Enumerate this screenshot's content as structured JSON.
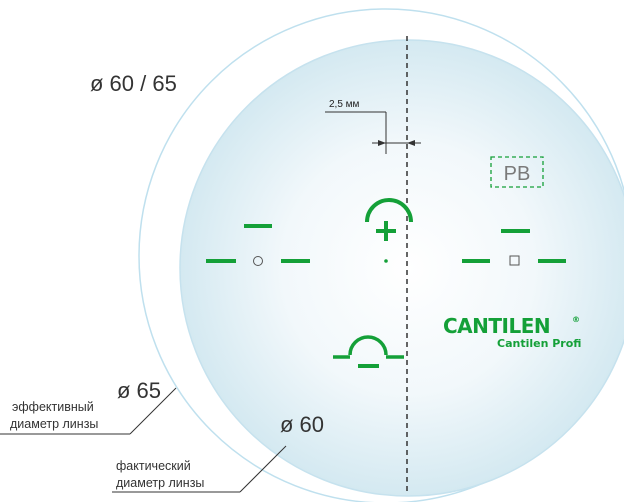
{
  "labels": {
    "outer_diameter": "ø 60 / 65",
    "effective_diameter": "ø 65",
    "actual_diameter": "ø 60",
    "effective_caption_line1": "эффективный",
    "effective_caption_line2": "диаметр линзы",
    "actual_caption_line1": "фактический",
    "actual_caption_line2": "диаметр линзы",
    "offset": "2,5 мм",
    "side_mark": "PB"
  },
  "brand": {
    "logo_text": "CANTILEN",
    "registered_mark": "®",
    "product": "Cantilen Profi"
  },
  "colors": {
    "green": "#14a038",
    "lens_edge": "#bfe0ee",
    "lens_fill_center": "#ffffff",
    "lens_fill_edge": "#d4e9f1",
    "text": "#333333"
  }
}
